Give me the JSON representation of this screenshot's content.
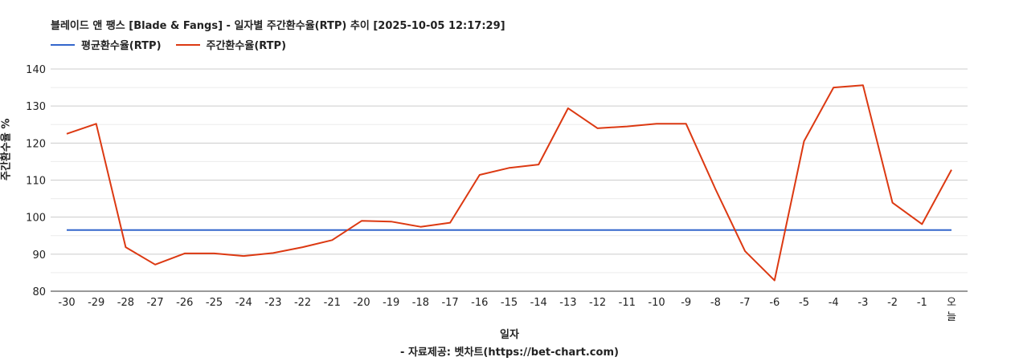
{
  "chart_data": {
    "type": "line",
    "title": "블레이드 앤 팽스 [Blade & Fangs] - 일자별 주간환수율(RTP) 추이 [2025-10-05 12:17:29]",
    "xlabel": "일자",
    "ylabel": "주간환수율 %",
    "source": "- 자료제공: 벳차트(https://bet-chart.com)",
    "legend_position": "top-left",
    "grid": true,
    "ylim": [
      80,
      140
    ],
    "yticks": [
      "80",
      "90",
      "100",
      "110",
      "120",
      "130",
      "140"
    ],
    "categories": [
      "-30",
      "-29",
      "-28",
      "-27",
      "-26",
      "-25",
      "-24",
      "-23",
      "-22",
      "-21",
      "-20",
      "-19",
      "-18",
      "-17",
      "-16",
      "-15",
      "-14",
      "-13",
      "-12",
      "-11",
      "-10",
      "-9",
      "-8",
      "-7",
      "-6",
      "-5",
      "-4",
      "-3",
      "-2",
      "-1",
      "오늘"
    ],
    "series": [
      {
        "name": "평균환수율(RTP)",
        "color": "#3366cc",
        "values": [
          96.5,
          96.5,
          96.5,
          96.5,
          96.5,
          96.5,
          96.5,
          96.5,
          96.5,
          96.5,
          96.5,
          96.5,
          96.5,
          96.5,
          96.5,
          96.5,
          96.5,
          96.5,
          96.5,
          96.5,
          96.5,
          96.5,
          96.5,
          96.5,
          96.5,
          96.5,
          96.5,
          96.5,
          96.5,
          96.5,
          96.5
        ]
      },
      {
        "name": "주간환수율(RTP)",
        "color": "#dc3912",
        "values": [
          122.5,
          125.2,
          91.9,
          87.2,
          90.2,
          90.2,
          89.5,
          90.3,
          91.9,
          93.8,
          99.0,
          98.8,
          97.4,
          98.5,
          111.4,
          113.3,
          114.2,
          129.4,
          124.0,
          124.5,
          125.2,
          125.2,
          107.5,
          90.8,
          82.9,
          120.5,
          135.0,
          135.6,
          103.9,
          98.1,
          112.8
        ]
      }
    ]
  }
}
